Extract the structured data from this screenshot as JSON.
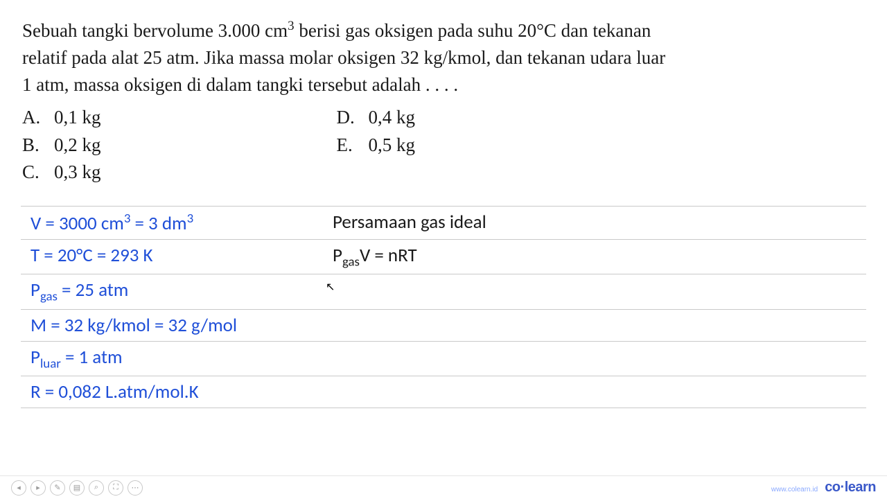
{
  "question": {
    "line1_a": "Sebuah tangki bervolume 3.000 cm",
    "line1_sup": "3",
    "line1_b": " berisi gas oksigen pada suhu 20°C dan tekanan",
    "line2": "relatif pada alat 25 atm. Jika massa molar oksigen 32 kg/kmol, dan tekanan udara luar",
    "line3": "1 atm, massa oksigen di dalam tangki tersebut adalah . . . ."
  },
  "options": {
    "A": {
      "letter": "A.",
      "text": "0,1 kg"
    },
    "B": {
      "letter": "B.",
      "text": "0,2 kg"
    },
    "C": {
      "letter": "C.",
      "text": "0,3 kg"
    },
    "D": {
      "letter": "D.",
      "text": "0,4 kg"
    },
    "E": {
      "letter": "E.",
      "text": "0,5 kg"
    }
  },
  "work": {
    "r1": {
      "left_a": "V = 3000 cm",
      "left_sup1": "3",
      "left_b": " = 3 dm",
      "left_sup2": "3",
      "right": "Persamaan gas ideal"
    },
    "r2": {
      "left": "T = 20°C = 293 K",
      "right_a": "P",
      "right_sub": "gas",
      "right_b": "V = nRT"
    },
    "r3": {
      "left_a": "P",
      "left_sub": "gas",
      "left_b": " = 25 atm"
    },
    "r4": {
      "left": "M = 32 kg/kmol = 32 g/mol"
    },
    "r5": {
      "left_a": "P",
      "left_sub": "luar",
      "left_b": " = 1 atm"
    },
    "r6": {
      "left": "R = 0,082 L.atm/mol.K"
    }
  },
  "footer": {
    "url": "www.colearn.id",
    "brand": "co·learn"
  },
  "colors": {
    "text": "#1a1a1a",
    "blue_text": "#1f4fd8",
    "rule": "#c9c9c9",
    "brand": "#3a58c9"
  }
}
